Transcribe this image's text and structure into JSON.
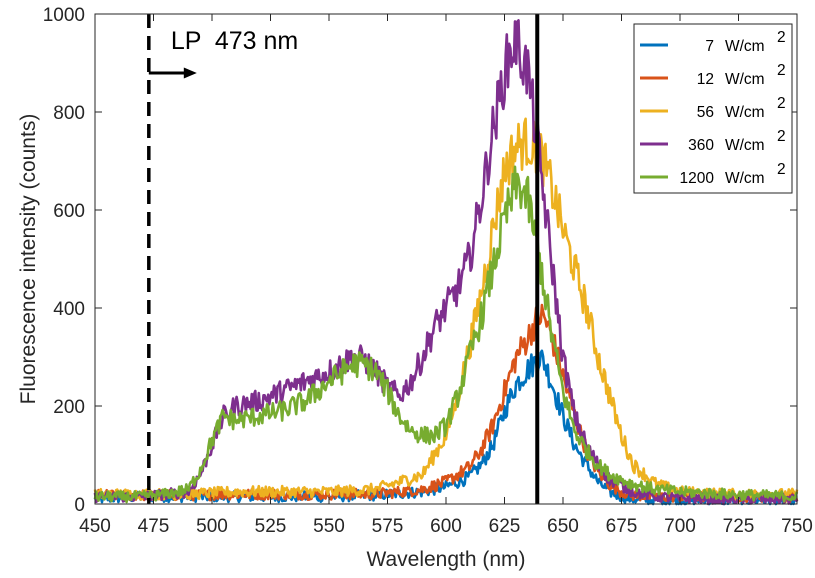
{
  "chart_data": {
    "type": "line",
    "xlabel": "Wavelength (nm)",
    "ylabel": "Fluorescence intensity (counts)",
    "xlim": [
      450,
      750
    ],
    "ylim": [
      0,
      1000
    ],
    "xticks": [
      450,
      475,
      500,
      525,
      550,
      575,
      600,
      625,
      650,
      675,
      700,
      725,
      750
    ],
    "yticks": [
      0,
      200,
      400,
      600,
      800,
      1000
    ],
    "grid": false,
    "legend_position": "top-right",
    "annotation": {
      "text": "LP  473 nm",
      "cutoff_nm": 473,
      "arrow_direction": "right"
    },
    "vertical_reference_line_nm": 639,
    "series": [
      {
        "name": "7",
        "unit": "W/cm",
        "unit_sup": "2",
        "color": "#0072BD",
        "x": [
          450,
          470,
          490,
          510,
          530,
          550,
          570,
          590,
          600,
          610,
          615,
          620,
          625,
          630,
          635,
          638,
          640,
          642,
          645,
          650,
          655,
          660,
          665,
          670,
          675,
          680,
          690,
          700,
          720,
          750
        ],
        "y": [
          10,
          15,
          15,
          15,
          15,
          15,
          18,
          25,
          35,
          55,
          80,
          120,
          190,
          245,
          275,
          290,
          300,
          290,
          250,
          180,
          120,
          80,
          45,
          25,
          15,
          10,
          8,
          8,
          8,
          8
        ]
      },
      {
        "name": "12",
        "unit": "W/cm",
        "unit_sup": "2",
        "color": "#D95319",
        "x": [
          450,
          470,
          490,
          510,
          530,
          550,
          570,
          590,
          600,
          610,
          615,
          620,
          625,
          630,
          635,
          638,
          640,
          642,
          645,
          650,
          655,
          660,
          665,
          670,
          675,
          680,
          690,
          700,
          720,
          750
        ],
        "y": [
          18,
          18,
          18,
          20,
          20,
          20,
          20,
          30,
          45,
          75,
          110,
          160,
          230,
          300,
          340,
          370,
          385,
          380,
          345,
          260,
          180,
          110,
          65,
          40,
          25,
          18,
          15,
          15,
          15,
          15
        ]
      },
      {
        "name": "56",
        "unit": "W/cm",
        "unit_sup": "2",
        "color": "#EDB120",
        "x": [
          450,
          470,
          490,
          510,
          530,
          550,
          570,
          590,
          600,
          605,
          610,
          615,
          620,
          625,
          630,
          635,
          640,
          645,
          650,
          655,
          660,
          665,
          670,
          675,
          680,
          690,
          700,
          720,
          750
        ],
        "y": [
          20,
          20,
          20,
          25,
          25,
          25,
          30,
          60,
          140,
          220,
          320,
          430,
          560,
          680,
          730,
          740,
          720,
          650,
          560,
          480,
          400,
          300,
          220,
          140,
          80,
          40,
          25,
          20,
          20
        ]
      },
      {
        "name": "360",
        "unit": "W/cm",
        "unit_sup": "2",
        "color": "#7E2F8E",
        "x": [
          450,
          460,
          470,
          480,
          490,
          495,
          500,
          505,
          510,
          520,
          530,
          540,
          550,
          560,
          565,
          570,
          575,
          580,
          585,
          590,
          595,
          600,
          605,
          610,
          615,
          620,
          625,
          628,
          630,
          632,
          635,
          640,
          645,
          650,
          655,
          660,
          665,
          670,
          680,
          690,
          700,
          720,
          750
        ],
        "y": [
          15,
          15,
          15,
          20,
          25,
          60,
          120,
          180,
          200,
          210,
          230,
          250,
          270,
          300,
          295,
          270,
          240,
          220,
          250,
          300,
          360,
          400,
          440,
          500,
          620,
          760,
          880,
          930,
          945,
          920,
          880,
          700,
          500,
          300,
          180,
          120,
          80,
          50,
          25,
          15,
          12,
          10,
          10
        ]
      },
      {
        "name": "1200",
        "unit": "W/cm",
        "unit_sup": "2",
        "color": "#77AC30",
        "x": [
          450,
          460,
          470,
          480,
          490,
          495,
          500,
          505,
          510,
          520,
          530,
          540,
          550,
          560,
          565,
          570,
          575,
          580,
          585,
          590,
          595,
          600,
          605,
          610,
          615,
          620,
          625,
          630,
          632,
          635,
          640,
          645,
          650,
          655,
          660,
          665,
          670,
          680,
          690,
          700,
          720,
          750
        ],
        "y": [
          15,
          15,
          15,
          20,
          30,
          70,
          130,
          180,
          170,
          180,
          190,
          210,
          250,
          285,
          285,
          270,
          230,
          180,
          150,
          140,
          140,
          160,
          220,
          300,
          380,
          480,
          580,
          650,
          645,
          620,
          500,
          350,
          230,
          150,
          110,
          80,
          60,
          40,
          30,
          25,
          20,
          15
        ]
      }
    ]
  }
}
